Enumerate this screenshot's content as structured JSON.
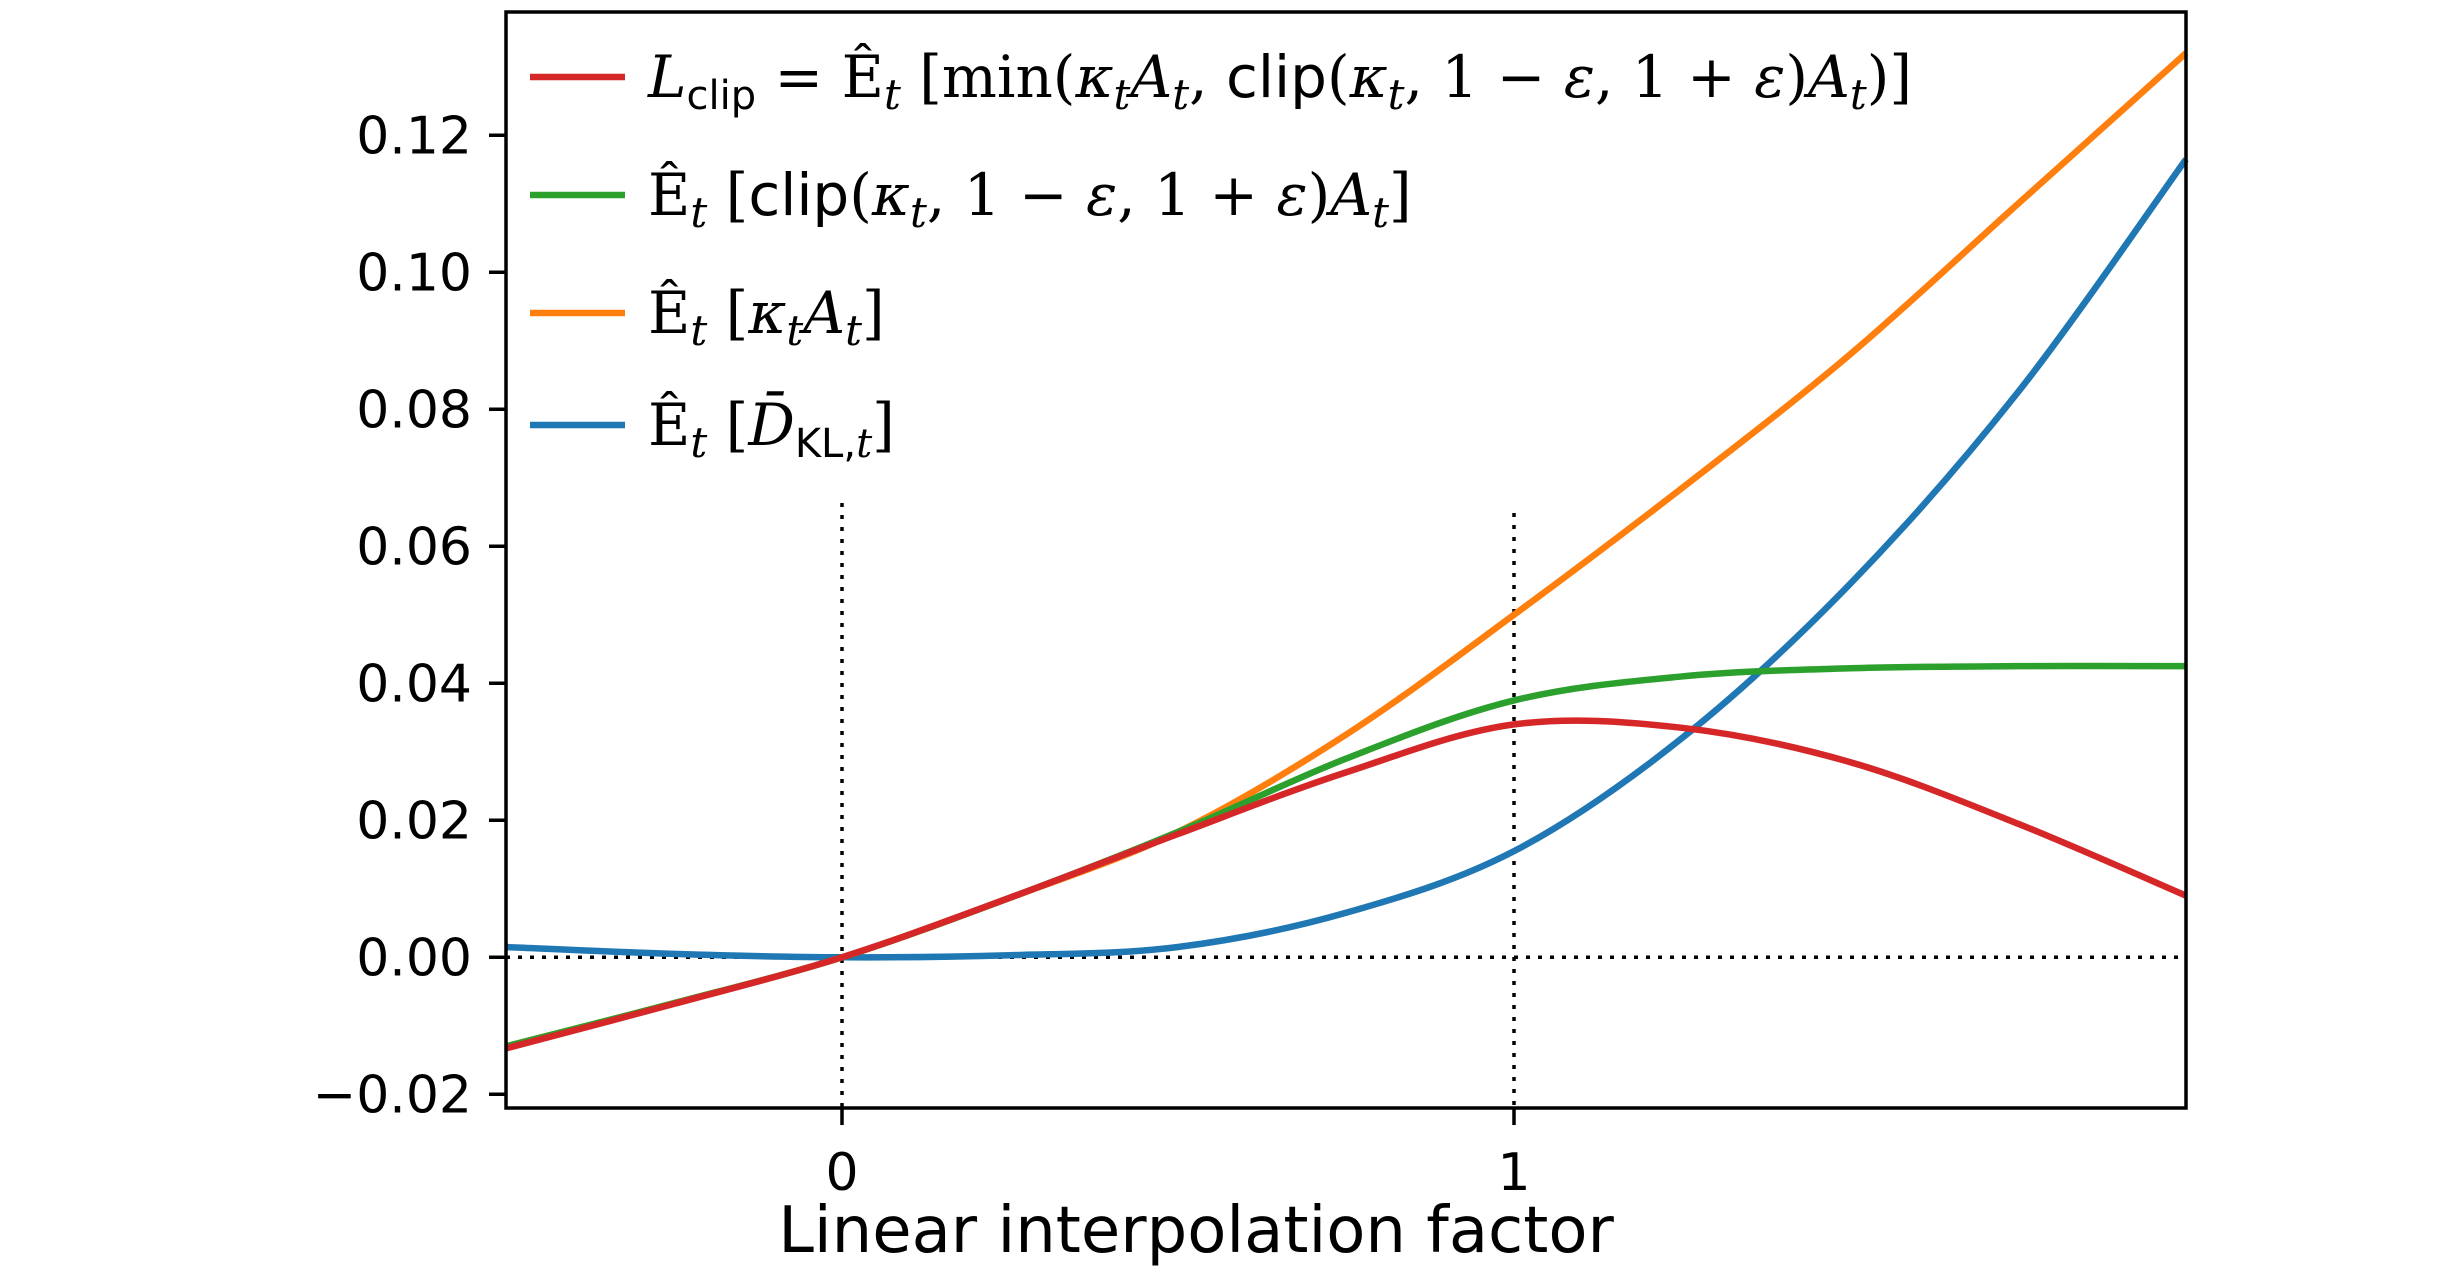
{
  "chart_data": {
    "type": "line",
    "xlabel": "Linear interpolation factor",
    "ylabel": "",
    "title": "",
    "xlim": [
      -0.5,
      2.0
    ],
    "ylim": [
      -0.022,
      0.138
    ],
    "xticks": [
      0,
      1
    ],
    "xtick_labels": [
      "0",
      "1"
    ],
    "yticks": [
      -0.02,
      0.0,
      0.02,
      0.04,
      0.06,
      0.08,
      0.1,
      0.12
    ],
    "ytick_labels": [
      "−0.02",
      "0.00",
      "0.02",
      "0.04",
      "0.06",
      "0.08",
      "0.10",
      "0.12"
    ],
    "grid": false,
    "legend_position": "upper-left",
    "reference_lines": {
      "horizontal_y": 0.0,
      "vertical_x": [
        0,
        1
      ],
      "style": "dotted"
    },
    "x": [
      -0.5,
      -0.25,
      0,
      0.25,
      0.5,
      0.75,
      1.0,
      1.25,
      1.5,
      1.75,
      2.0
    ],
    "series": [
      {
        "name": "L_clip = Ê_t [min(κ_t A_t, clip(κ_t, 1 − ε, 1 + ε) A_t)]",
        "color": "#d62728",
        "values": [
          -0.0133,
          -0.0068,
          0.0,
          0.0087,
          0.018,
          0.027,
          0.034,
          0.0335,
          0.0285,
          0.0195,
          0.009
        ]
      },
      {
        "name": "Ê_t [clip(κ_t, 1 − ε, 1 + ε) A_t]",
        "color": "#2ca02c",
        "values": [
          -0.013,
          -0.0067,
          0.0,
          0.0087,
          0.0183,
          0.029,
          0.0375,
          0.041,
          0.0422,
          0.0425,
          0.0425
        ]
      },
      {
        "name": "Ê_t [κ_t A_t]",
        "color": "#ff7f0e",
        "values": [
          -0.013,
          -0.0067,
          0.0,
          0.0087,
          0.0183,
          0.0325,
          0.05,
          0.0685,
          0.088,
          0.11,
          0.132
        ]
      },
      {
        "name": "Ê_t [D̄_KL,t]",
        "color": "#1f77b4",
        "values": [
          0.0015,
          0.0005,
          0.0,
          0.0003,
          0.0015,
          0.0065,
          0.0155,
          0.032,
          0.0545,
          0.0825,
          0.1165
        ]
      }
    ]
  }
}
